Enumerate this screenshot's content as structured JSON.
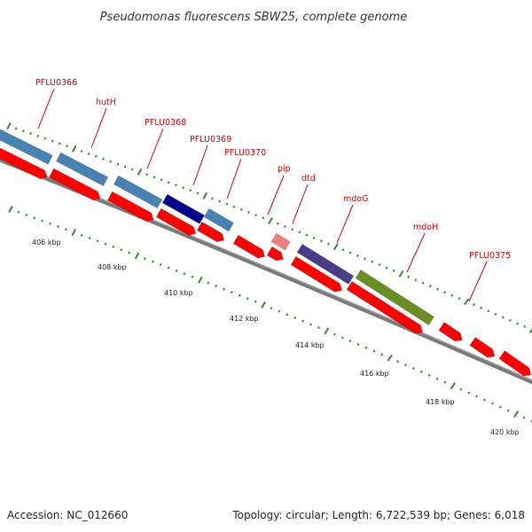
{
  "title": "Pseudomonas fluorescens SBW25, complete genome",
  "footer": {
    "accession": "Accession: NC_012660",
    "summary": "Topology: circular; Length: 6,722,539 bp; Genes: 6,018"
  },
  "ruler_labels": [
    "406 kbp",
    "408 kbp",
    "410 kbp",
    "412 kbp",
    "414 kbp",
    "416 kbp",
    "418 kbp",
    "420 kbp"
  ],
  "gene_labels": [
    "PFLU0366",
    "hutH",
    "PFLU0368",
    "PFLU0369",
    "PFLU0370",
    "pip",
    "dtd",
    "mdoG",
    "mdoH",
    "PFLU0375"
  ],
  "colors": {
    "label_red": "#cc0000",
    "forward_cds": "#ff0000",
    "backbone": "#808080",
    "tick_green": "#2e8b2e",
    "light_blue": "#4682b4",
    "dark_blue": "#00008b",
    "slate_purple": "#483d8b",
    "olive_green": "#6b8e23",
    "salmon": "#f08080"
  }
}
